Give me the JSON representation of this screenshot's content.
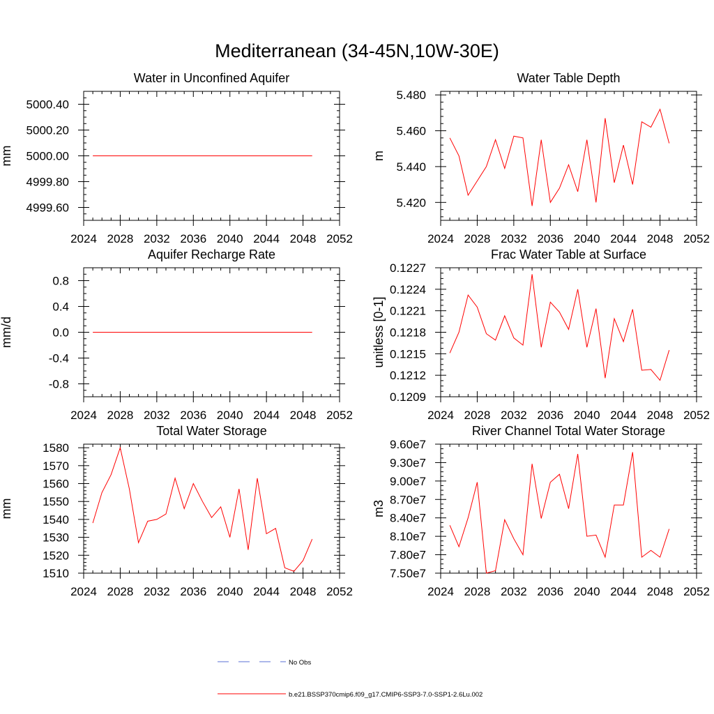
{
  "title": "Mediterranean (34-45N,10W-30E)",
  "legend": {
    "placement": "bottom-center",
    "entries": [
      {
        "label": "No Obs",
        "color": "#5a6fd6",
        "style": "dashed"
      },
      {
        "label": "b.e21.BSSP370cmip6.f09_g17.CMIP6-SSP3-7.0-SSP1-2.6Lu.002",
        "color": "#ff0000",
        "style": "solid"
      }
    ]
  },
  "chart_data": [
    {
      "type": "line",
      "title": "Water in Unconfined Aquifer",
      "ylabel": "mm",
      "xlim": [
        2024,
        2052
      ],
      "ylim": [
        4999.5,
        5000.5
      ],
      "x_ticks": [
        2024,
        2028,
        2032,
        2036,
        2040,
        2044,
        2048,
        2052
      ],
      "x_tick_labels": [
        "2024",
        "2028",
        "2032",
        "2036",
        "2040",
        "2044",
        "2048",
        "2052"
      ],
      "y_ticks": [
        4999.6,
        4999.8,
        5000.0,
        5000.2,
        5000.4
      ],
      "y_tick_labels": [
        "4999.60",
        "4999.80",
        "5000.00",
        "5000.20",
        "5000.40"
      ],
      "series": [
        {
          "color": "#ff0000",
          "x": [
            2025,
            2026,
            2027,
            2028,
            2029,
            2030,
            2031,
            2032,
            2033,
            2034,
            2035,
            2036,
            2037,
            2038,
            2039,
            2040,
            2041,
            2042,
            2043,
            2044,
            2045,
            2046,
            2047,
            2048,
            2049
          ],
          "values": [
            5000,
            5000,
            5000,
            5000,
            5000,
            5000,
            5000,
            5000,
            5000,
            5000,
            5000,
            5000,
            5000,
            5000,
            5000,
            5000,
            5000,
            5000,
            5000,
            5000,
            5000,
            5000,
            5000,
            5000,
            5000
          ]
        }
      ]
    },
    {
      "type": "line",
      "title": "Water Table Depth",
      "ylabel": "m",
      "xlim": [
        2024,
        2052
      ],
      "ylim": [
        5.41,
        5.482
      ],
      "x_ticks": [
        2024,
        2028,
        2032,
        2036,
        2040,
        2044,
        2048,
        2052
      ],
      "x_tick_labels": [
        "2024",
        "2028",
        "2032",
        "2036",
        "2040",
        "2044",
        "2048",
        "2052"
      ],
      "y_ticks": [
        5.42,
        5.44,
        5.46,
        5.48
      ],
      "y_tick_labels": [
        "5.420",
        "5.440",
        "5.460",
        "5.480"
      ],
      "series": [
        {
          "color": "#ff0000",
          "x": [
            2025,
            2026,
            2027,
            2028,
            2029,
            2030,
            2031,
            2032,
            2033,
            2034,
            2035,
            2036,
            2037,
            2038,
            2039,
            2040,
            2041,
            2042,
            2043,
            2044,
            2045,
            2046,
            2047,
            2048,
            2049
          ],
          "values": [
            5.456,
            5.446,
            5.424,
            5.432,
            5.44,
            5.455,
            5.439,
            5.457,
            5.456,
            5.418,
            5.455,
            5.42,
            5.428,
            5.441,
            5.426,
            5.455,
            5.42,
            5.467,
            5.431,
            5.452,
            5.43,
            5.465,
            5.462,
            5.472,
            5.453
          ]
        }
      ]
    },
    {
      "type": "line",
      "title": "Aquifer Recharge Rate",
      "ylabel": "mm/d",
      "xlim": [
        2024,
        2052
      ],
      "ylim": [
        -1.0,
        1.0
      ],
      "x_ticks": [
        2024,
        2028,
        2032,
        2036,
        2040,
        2044,
        2048,
        2052
      ],
      "x_tick_labels": [
        "2024",
        "2028",
        "2032",
        "2036",
        "2040",
        "2044",
        "2048",
        "2052"
      ],
      "y_ticks": [
        -0.8,
        -0.4,
        0.0,
        0.4,
        0.8
      ],
      "y_tick_labels": [
        "-0.8",
        "-0.4",
        "0.0",
        "0.4",
        "0.8"
      ],
      "series": [
        {
          "color": "#ff0000",
          "x": [
            2025,
            2026,
            2027,
            2028,
            2029,
            2030,
            2031,
            2032,
            2033,
            2034,
            2035,
            2036,
            2037,
            2038,
            2039,
            2040,
            2041,
            2042,
            2043,
            2044,
            2045,
            2046,
            2047,
            2048,
            2049
          ],
          "values": [
            0,
            0,
            0,
            0,
            0,
            0,
            0,
            0,
            0,
            0,
            0,
            0,
            0,
            0,
            0,
            0,
            0,
            0,
            0,
            0,
            0,
            0,
            0,
            0,
            0
          ]
        }
      ]
    },
    {
      "type": "line",
      "title": "Frac Water Table at Surface",
      "ylabel": "unitless [0-1]",
      "xlim": [
        2024,
        2052
      ],
      "ylim": [
        0.1209,
        0.1227
      ],
      "x_ticks": [
        2024,
        2028,
        2032,
        2036,
        2040,
        2044,
        2048,
        2052
      ],
      "x_tick_labels": [
        "2024",
        "2028",
        "2032",
        "2036",
        "2040",
        "2044",
        "2048",
        "2052"
      ],
      "y_ticks": [
        0.1209,
        0.1212,
        0.1215,
        0.1218,
        0.1221,
        0.1224,
        0.1227
      ],
      "y_tick_labels": [
        "0.1209",
        "0.1212",
        "0.1215",
        "0.1218",
        "0.1221",
        "0.1224",
        "0.1227"
      ],
      "series": [
        {
          "color": "#ff0000",
          "x": [
            2025,
            2026,
            2027,
            2028,
            2029,
            2030,
            2031,
            2032,
            2033,
            2034,
            2035,
            2036,
            2037,
            2038,
            2039,
            2040,
            2041,
            2042,
            2043,
            2044,
            2045,
            2046,
            2047,
            2048,
            2049
          ],
          "values": [
            0.12151,
            0.1218,
            0.12232,
            0.12215,
            0.12178,
            0.12169,
            0.12203,
            0.12172,
            0.12162,
            0.12261,
            0.12159,
            0.12222,
            0.12208,
            0.12184,
            0.1224,
            0.12159,
            0.12213,
            0.12116,
            0.12199,
            0.12167,
            0.12212,
            0.12127,
            0.12128,
            0.12113,
            0.12155
          ]
        }
      ]
    },
    {
      "type": "line",
      "title": "Total Water Storage",
      "ylabel": "mm",
      "xlim": [
        2024,
        2052
      ],
      "ylim": [
        1510,
        1582
      ],
      "x_ticks": [
        2024,
        2028,
        2032,
        2036,
        2040,
        2044,
        2048,
        2052
      ],
      "x_tick_labels": [
        "2024",
        "2028",
        "2032",
        "2036",
        "2040",
        "2044",
        "2048",
        "2052"
      ],
      "y_ticks": [
        1510,
        1520,
        1530,
        1540,
        1550,
        1560,
        1570,
        1580
      ],
      "y_tick_labels": [
        "1510",
        "1520",
        "1530",
        "1540",
        "1550",
        "1560",
        "1570",
        "1580"
      ],
      "series": [
        {
          "color": "#ff0000",
          "x": [
            2025,
            2026,
            2027,
            2028,
            2029,
            2030,
            2031,
            2032,
            2033,
            2034,
            2035,
            2036,
            2037,
            2038,
            2039,
            2040,
            2041,
            2042,
            2043,
            2044,
            2045,
            2046,
            2047,
            2048,
            2049
          ],
          "values": [
            1538,
            1555,
            1565,
            1580,
            1557,
            1527,
            1539,
            1540,
            1543,
            1563,
            1546,
            1560,
            1550,
            1541,
            1547,
            1530,
            1557,
            1523,
            1563,
            1532,
            1535,
            1513,
            1511,
            1517,
            1529
          ]
        }
      ]
    },
    {
      "type": "line",
      "title": "River Channel Total Water Storage",
      "ylabel": "m3",
      "xlim": [
        2024,
        2052
      ],
      "ylim": [
        75000000.0,
        96000000.0
      ],
      "x_ticks": [
        2024,
        2028,
        2032,
        2036,
        2040,
        2044,
        2048,
        2052
      ],
      "x_tick_labels": [
        "2024",
        "2028",
        "2032",
        "2036",
        "2040",
        "2044",
        "2048",
        "2052"
      ],
      "y_ticks": [
        75000000.0,
        78000000.0,
        81000000.0,
        84000000.0,
        87000000.0,
        90000000.0,
        93000000.0,
        96000000.0
      ],
      "y_tick_labels": [
        "7.50e7",
        "7.80e7",
        "8.10e7",
        "8.40e7",
        "8.70e7",
        "9.00e7",
        "9.30e7",
        "9.60e7"
      ],
      "series": [
        {
          "color": "#ff0000",
          "x": [
            2025,
            2026,
            2027,
            2028,
            2029,
            2030,
            2031,
            2032,
            2033,
            2034,
            2035,
            2036,
            2037,
            2038,
            2039,
            2040,
            2041,
            2042,
            2043,
            2044,
            2045,
            2046,
            2047,
            2048,
            2049
          ],
          "values": [
            82800000.0,
            79300000.0,
            84000000.0,
            89800000.0,
            75000000.0,
            75400000.0,
            83700000.0,
            80600000.0,
            78000000.0,
            92800000.0,
            83900000.0,
            89800000.0,
            91100000.0,
            85500000.0,
            94400000.0,
            81000000.0,
            81200000.0,
            77600000.0,
            86100000.0,
            86100000.0,
            94700000.0,
            77600000.0,
            78700000.0,
            77600000.0,
            82200000.0
          ]
        }
      ]
    }
  ]
}
